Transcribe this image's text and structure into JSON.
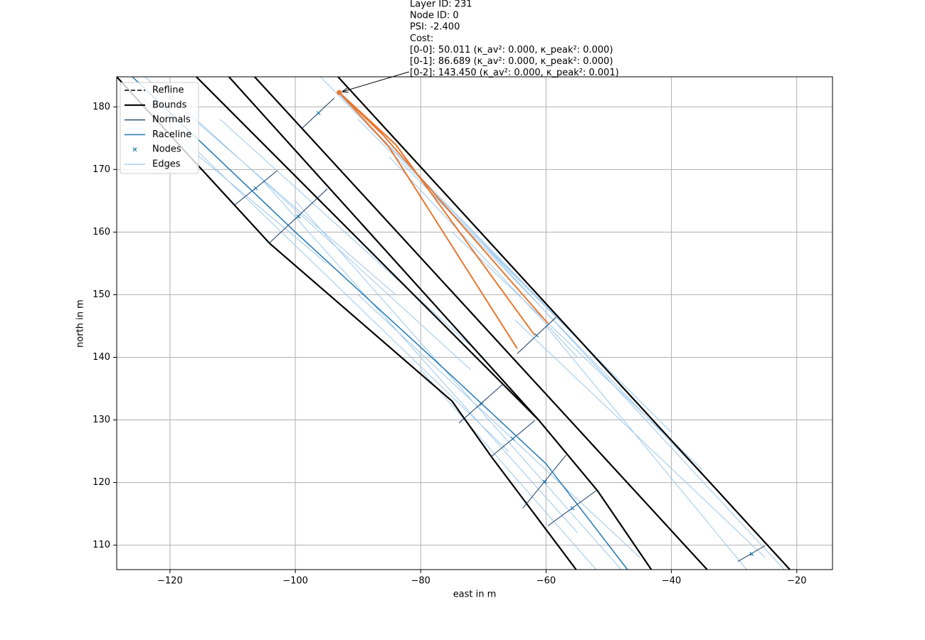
{
  "chart_data": {
    "type": "line",
    "xlabel": "east in m",
    "ylabel": "north in m",
    "xlim": [
      -128.5,
      -14.3
    ],
    "ylim": [
      106.1,
      184.8
    ],
    "xticks": [
      {
        "value": -120,
        "label": "−120"
      },
      {
        "value": -100,
        "label": "−100"
      },
      {
        "value": -80,
        "label": "−80"
      },
      {
        "value": -60,
        "label": "−60"
      },
      {
        "value": -40,
        "label": "−40"
      },
      {
        "value": -20,
        "label": "−20"
      }
    ],
    "yticks": [
      110,
      120,
      130,
      140,
      150,
      160,
      170,
      180
    ],
    "grid": true,
    "legend": "upper left",
    "series": [
      {
        "name": "Refline",
        "color": "#000000",
        "style": "dashed",
        "x": [],
        "y": []
      },
      {
        "name": "Bounds",
        "color": "#000000",
        "style": "solid",
        "x": [
          -128.5,
          -104.1,
          -75,
          -68.7,
          -63,
          -55.2,
          null,
          -115.8,
          -61.2,
          -51.8,
          -43.2,
          null,
          -110.6,
          -61.2,
          null,
          -106.5,
          -34.3,
          null,
          -93.2,
          -21.1
        ],
        "y": [
          184.8,
          158.2,
          133,
          124.1,
          116.5,
          106.1,
          null,
          184.8,
          130.0,
          118.7,
          106.1,
          null,
          184.8,
          130.0,
          null,
          184.8,
          106.1,
          null,
          184.8,
          106.1
        ]
      },
      {
        "name": "Normals",
        "color": "#17375e",
        "style": "solid",
        "x": [
          -104.2,
          -94.9,
          null,
          -109.7,
          -102.9,
          null,
          -73.9,
          -66.8,
          null,
          -68.8,
          -61.8,
          null,
          -63.7,
          -56.8,
          null,
          -59.7,
          -52,
          null,
          -98.9,
          -93.8,
          null,
          -64.6,
          -58.4,
          null,
          -29.4,
          -25.1
        ],
        "y": [
          158.2,
          166.9,
          null,
          164.3,
          169.8,
          null,
          129.5,
          135.8,
          null,
          124.1,
          129.9,
          null,
          115.9,
          124.4,
          null,
          113.1,
          118.7,
          null,
          176.6,
          181.4,
          null,
          140.6,
          146.4,
          null,
          107.4,
          109.9
        ]
      },
      {
        "name": "Raceline",
        "color": "#1f77b4",
        "style": "solid",
        "x": [
          -126,
          -100,
          -75,
          -60,
          -47
        ],
        "y": [
          184.8,
          160,
          137,
          123,
          106.1
        ]
      },
      {
        "name": "Nodes",
        "color": "#1f77b4",
        "style": "marker",
        "x": [
          -99.5,
          -106.3,
          -70.3,
          -65.3,
          -60.2,
          -55.8,
          -96.3,
          -61.5,
          -27.2
        ],
        "y": [
          162.5,
          167,
          132.6,
          127,
          120.1,
          115.9,
          179,
          143.5,
          108.6
        ]
      },
      {
        "name": "Edges",
        "color": "#9cc8ec",
        "style": "solid",
        "x": [
          -124,
          -84,
          null,
          -118,
          -72,
          null,
          -125,
          -66,
          null,
          -112,
          -70,
          null,
          -105,
          -55,
          null,
          -100,
          -48,
          null,
          -120,
          -95,
          null,
          -90,
          -45,
          null,
          -80,
          -52,
          null,
          -96,
          -60,
          null,
          -93,
          -50,
          null,
          -90,
          -40,
          null,
          -80,
          -30,
          null,
          -70,
          -22,
          null,
          -65,
          -25,
          null,
          -85,
          -55,
          null,
          -60,
          -28,
          null,
          -75,
          -35
        ],
        "y": [
          184.8,
          150,
          null,
          180,
          138,
          null,
          182,
          125,
          null,
          178,
          140,
          null,
          168,
          112,
          null,
          165,
          106.1,
          null,
          176,
          155,
          null,
          150,
          108,
          null,
          138,
          106.1,
          null,
          184.8,
          148,
          null,
          182,
          138,
          null,
          178,
          128,
          null,
          168,
          116,
          null,
          158,
          106.1,
          null,
          146,
          108,
          null,
          172,
          140,
          null,
          145,
          106.1,
          null,
          160,
          122
        ]
      }
    ],
    "highlight": {
      "color": "#e8772e",
      "x": [
        -93.0,
        -85,
        -64.6,
        null,
        -93.0,
        -84,
        -61.8,
        null,
        -93.0,
        -86,
        -59.7
      ],
      "y": [
        182.3,
        173.5,
        141.4,
        null,
        182.3,
        174,
        143.5,
        null,
        182.3,
        175.5,
        145.4
      ]
    },
    "annotation": {
      "xy": [
        -93.0,
        182.3
      ],
      "lines": [
        "Layer ID: 231",
        "Node ID: 0",
        "PSI: -2.400",
        "Cost:",
        "[0-0]: 50.011 (κ_av²: 0.000, κ_peak²: 0.000)",
        "[0-1]: 86.689 (κ_av²: 0.000, κ_peak²: 0.000)",
        "[0-2]: 143.450 (κ_av²: 0.000, κ_peak²: 0.001)"
      ]
    }
  }
}
